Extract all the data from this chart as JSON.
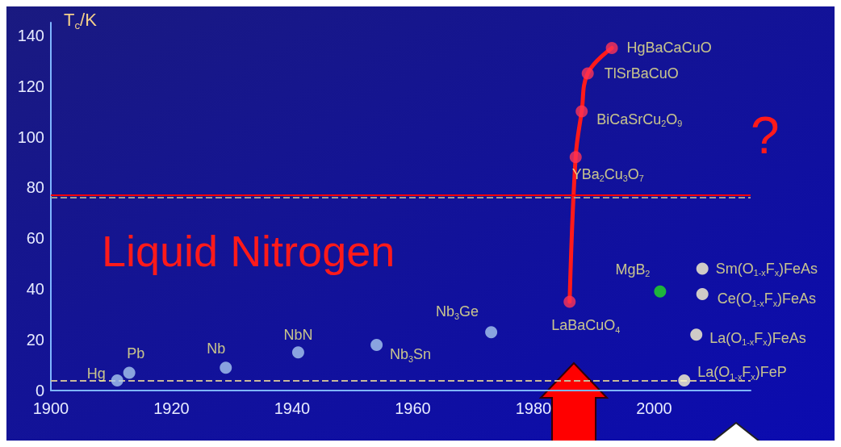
{
  "chart_data": {
    "type": "scatter",
    "ylabel": "T$_{c}$/K",
    "xlim": [
      1900,
      2016
    ],
    "ylim": [
      0,
      145
    ],
    "xticks": [
      1900,
      1920,
      1940,
      1960,
      1980,
      2000
    ],
    "yticks": [
      0,
      20,
      40,
      60,
      80,
      100,
      120,
      140
    ],
    "grid": false,
    "marker": "circle",
    "series": [
      {
        "name": "Hg",
        "color": "#a8c8f0",
        "x": [
          1911
        ],
        "values": [
          4
        ]
      },
      {
        "name": "Pb",
        "color": "#a8c8f0",
        "x": [
          1913
        ],
        "values": [
          7
        ]
      },
      {
        "name": "Nb",
        "color": "#a8c8f0",
        "x": [
          1929
        ],
        "values": [
          9
        ]
      },
      {
        "name": "NbN",
        "color": "#a8c8f0",
        "x": [
          1941
        ],
        "values": [
          15
        ]
      },
      {
        "name": "Nb$_{3}$Sn",
        "color": "#a8c8f0",
        "x": [
          1954
        ],
        "values": [
          18
        ]
      },
      {
        "name": "Nb$_{3}$Ge",
        "color": "#a8c8f0",
        "x": [
          1973
        ],
        "values": [
          23
        ]
      },
      {
        "type": "line",
        "color": "#ff1a1a",
        "marker": "none",
        "x": [
          1986,
          1987,
          1988,
          1989,
          1993
        ],
        "values": [
          35,
          92,
          110,
          125,
          135
        ]
      },
      {
        "name": "LaBaCuO$_{4}$",
        "color": "#ff3355",
        "x": [
          1986
        ],
        "values": [
          35
        ]
      },
      {
        "name": "YBa$_{2}$Cu$_{3}$O$_{7}$",
        "color": "#ff3355",
        "x": [
          1987
        ],
        "values": [
          92
        ]
      },
      {
        "name": "BiCaSrCu$_{2}$O$_{9}$",
        "color": "#ff3355",
        "x": [
          1988
        ],
        "values": [
          110
        ]
      },
      {
        "name": "TlSrBaCuO",
        "color": "#ff3355",
        "x": [
          1989
        ],
        "values": [
          125
        ]
      },
      {
        "name": "HgBaCaCuO",
        "color": "#ff3355",
        "x": [
          1993
        ],
        "values": [
          135
        ]
      },
      {
        "name": "MgB$_{2}$",
        "color": "#22dd22",
        "x": [
          2001
        ],
        "values": [
          39
        ]
      },
      {
        "name": "La(O$_{1-x}$F$_{x}$)FeP",
        "color": "#fffad0",
        "x": [
          2005
        ],
        "values": [
          4
        ]
      },
      {
        "name": "La(O$_{1-x}$F$_{x}$)FeAs",
        "color": "#fffad0",
        "x": [
          2007
        ],
        "values": [
          22
        ]
      },
      {
        "name": "Ce(O$_{1-x}$F$_{x}$)FeAs",
        "color": "#fffad0",
        "x": [
          2008
        ],
        "values": [
          38
        ]
      },
      {
        "name": "Sm(O$_{1-x}$F$_{x}$)FeAs",
        "color": "#fffad0",
        "x": [
          2008
        ],
        "values": [
          48
        ]
      }
    ],
    "ref_lines": [
      {
        "axis": "y",
        "value": 77,
        "color": "#ff0000",
        "line_style": "solid"
      },
      {
        "axis": "y",
        "value": 76,
        "color": "#9a9a9a",
        "line_style": "dashed"
      },
      {
        "axis": "y",
        "value": 4,
        "color": "#c8b89a",
        "line_style": "dashed"
      }
    ],
    "annotations": [
      "Liquid Nitrogen",
      "?"
    ]
  }
}
